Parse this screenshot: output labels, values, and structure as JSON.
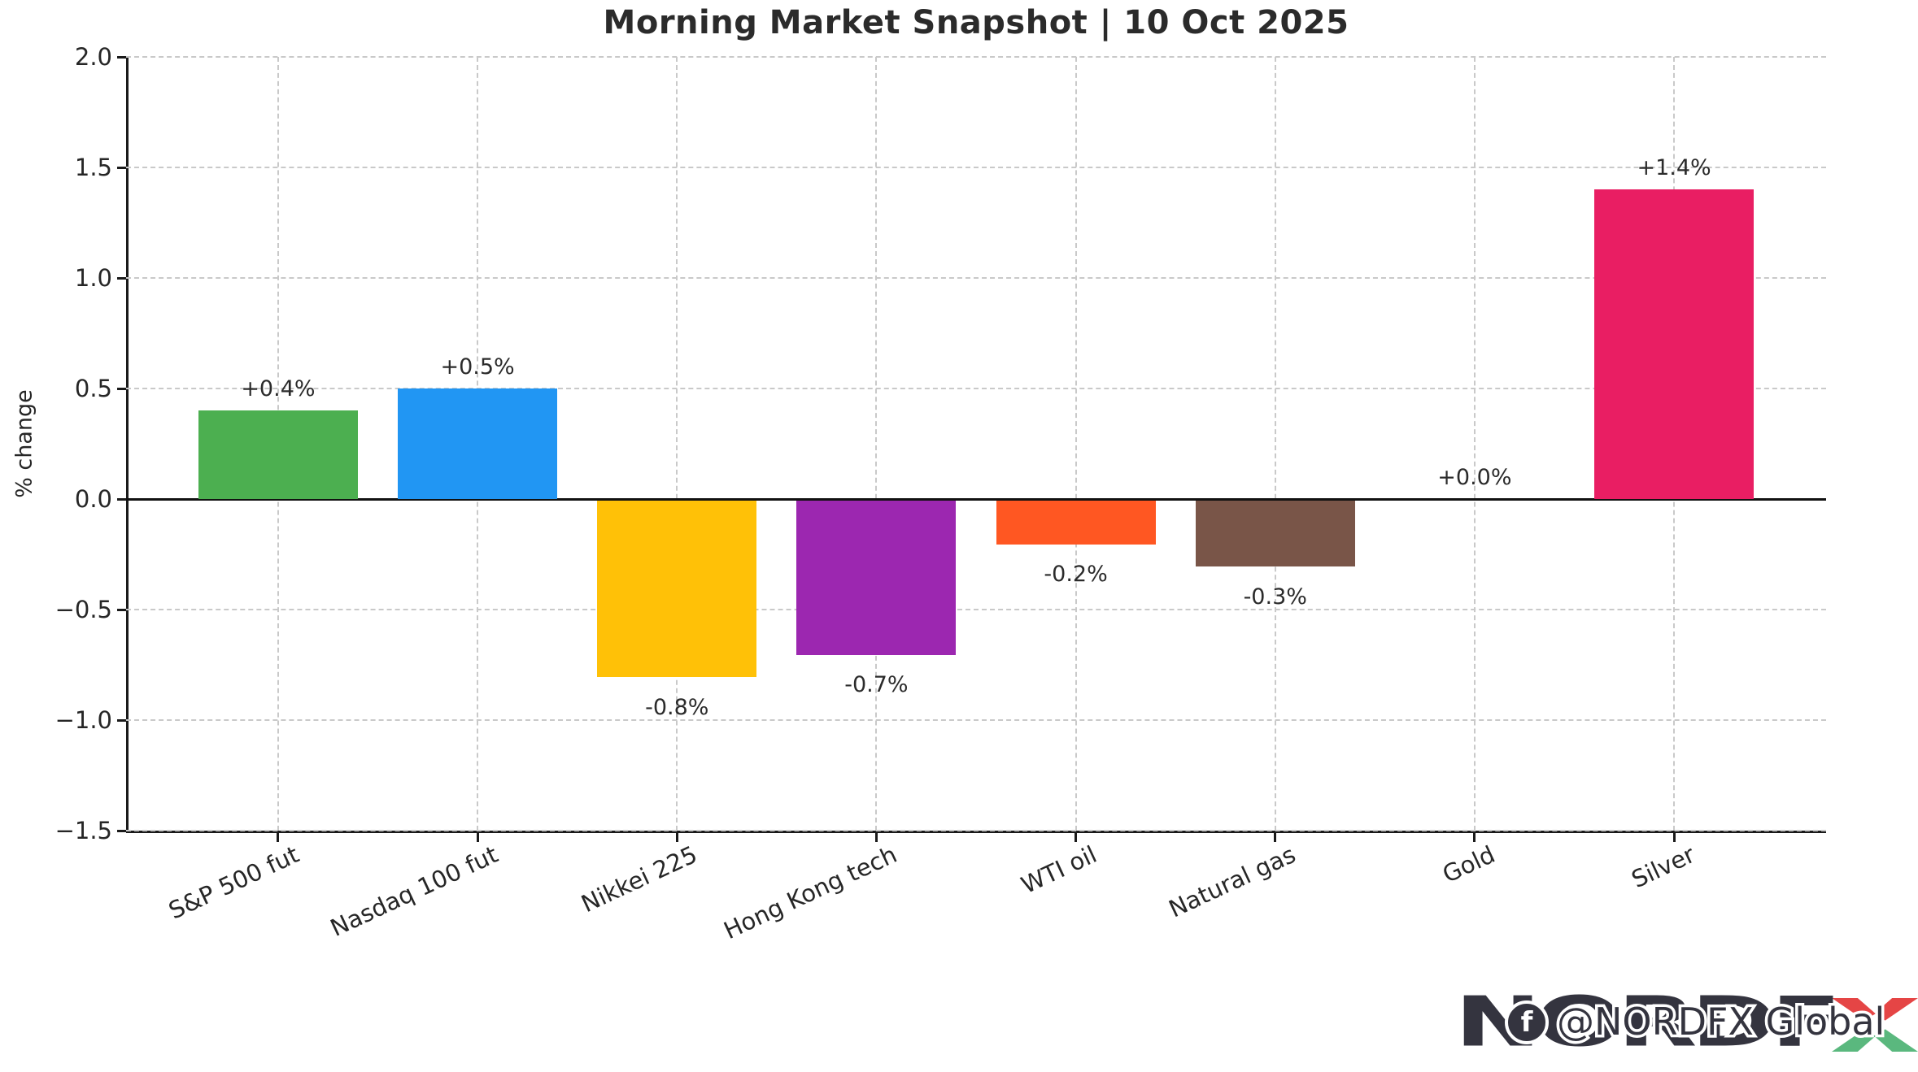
{
  "chart_data": {
    "type": "bar",
    "title": "Morning Market Snapshot | 10 Oct 2025",
    "xlabel": "",
    "ylabel": "% change",
    "categories": [
      "S&P 500 fut",
      "Nasdaq 100 fut",
      "Nikkei 225",
      "Hong Kong tech",
      "WTI oil",
      "Natural gas",
      "Gold",
      "Silver"
    ],
    "values": [
      0.4,
      0.5,
      -0.8,
      -0.7,
      -0.2,
      -0.3,
      0.0,
      1.4
    ],
    "bar_labels": [
      "+0.4%",
      "+0.5%",
      "-0.8%",
      "-0.7%",
      "-0.2%",
      "-0.3%",
      "+0.0%",
      "+1.4%"
    ],
    "colors": [
      "#4caf50",
      "#2196f3",
      "#ffc107",
      "#9c27b0",
      "#ff5722",
      "#795548",
      null,
      "#e91e63"
    ],
    "ylim": [
      -1.5,
      2.0
    ],
    "yticks": [
      2.0,
      1.5,
      1.0,
      0.5,
      0.0,
      -0.5,
      -1.0,
      -1.5
    ],
    "xlim": [
      -0.7625,
      7.7625
    ],
    "bar_width": 0.8,
    "grid": "dashed",
    "legend": false,
    "axis_color": "#1a1a1a",
    "grid_color": "#c9c9c9"
  },
  "watermark": {
    "brand": "NORDFX",
    "brand_letters": "NORDF",
    "handle": "@NORDFX Global",
    "facebook_icon_glyph": "f",
    "x_red": "#e54545",
    "x_green": "#5ab87e",
    "logo_color": "#34343f"
  }
}
